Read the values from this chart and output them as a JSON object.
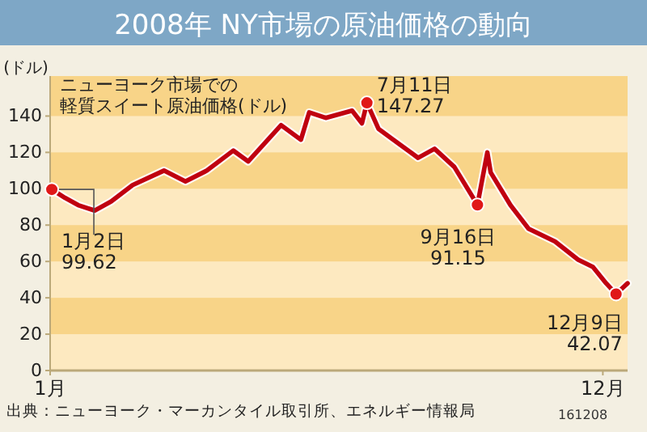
{
  "chart_data": {
    "type": "line",
    "title": "2008年 NY市場の原油価格の動向",
    "subtitle": "ニューヨーク市場での軽質スイート原油価格(ドル)",
    "ylabel": "(ドル)",
    "x": [
      "2008-01-02",
      "2008-01-10",
      "2008-01-18",
      "2008-01-28",
      "2008-02-07",
      "2008-02-20",
      "2008-03-10",
      "2008-03-23",
      "2008-04-05",
      "2008-04-21",
      "2008-04-30",
      "2008-05-20",
      "2008-06-01",
      "2008-06-06",
      "2008-06-16",
      "2008-07-02",
      "2008-07-08",
      "2008-07-11",
      "2008-07-18",
      "2008-07-27",
      "2008-08-11",
      "2008-08-21",
      "2008-09-02",
      "2008-09-16",
      "2008-09-22",
      "2008-09-24",
      "2008-10-06",
      "2008-10-17",
      "2008-11-02",
      "2008-11-16",
      "2008-11-25",
      "2008-12-03",
      "2008-12-09",
      "2008-12-16"
    ],
    "series": [
      {
        "color": "#c00010",
        "values": [
          99.62,
          95,
          91,
          88,
          93,
          102,
          110,
          104,
          110,
          121,
          115,
          135,
          127,
          142,
          139,
          143,
          136,
          147.27,
          133,
          127,
          117,
          122,
          112,
          91.15,
          120,
          109,
          91,
          78,
          71,
          61,
          57,
          48,
          42.07,
          48
        ]
      }
    ],
    "xlim": [
      "2008-01-01",
      "2008-12-16"
    ],
    "xticks": [
      {
        "value": "2008-01-01",
        "label": "1月"
      },
      {
        "value": "2008-12-01",
        "label": "12月"
      }
    ],
    "ylim": [
      0,
      162
    ],
    "yticks": [
      0,
      20,
      40,
      60,
      80,
      100,
      120,
      140
    ],
    "marker": "none",
    "line_style": "solid",
    "bands": [
      {
        "axis": "y",
        "from": 20,
        "to": 40,
        "color": "#f8d488"
      },
      {
        "axis": "y",
        "from": 60,
        "to": 80,
        "color": "#f8d488"
      },
      {
        "axis": "y",
        "from": 100,
        "to": 120,
        "color": "#f8d488"
      },
      {
        "axis": "y",
        "from": 140,
        "to": 162,
        "color": "#f8d488"
      }
    ],
    "annotations": [
      {
        "text": "1月2日\n99.62",
        "x": "2008-01-02",
        "y": 99.62
      },
      {
        "text": "7月11日\n147.27",
        "x": "2008-07-11",
        "y": 147.27
      },
      {
        "text": "9月16日\n91.15",
        "x": "2008-09-16",
        "y": 91.15
      },
      {
        "text": "12月9日\n42.07",
        "x": "2008-12-09",
        "y": 42.07
      },
      "出典：ニューヨーク・マーカンタイル取引所、エネルギー情報局",
      "161208"
    ]
  }
}
